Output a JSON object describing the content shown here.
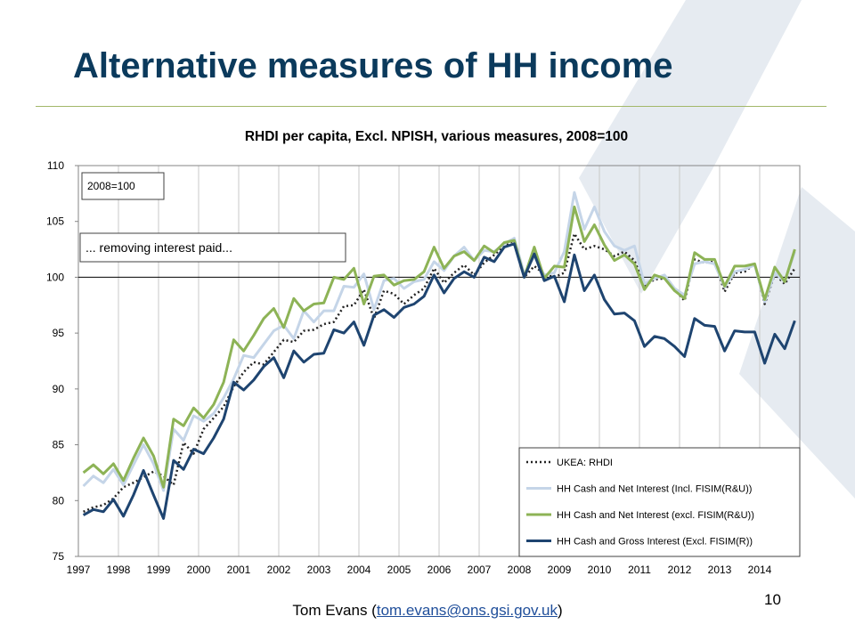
{
  "slide": {
    "title": "Alternative measures of HH income",
    "footer_name": "Tom Evans (",
    "footer_email": "tom.evans@ons.gsi.gov.uk",
    "footer_close": ")",
    "page_number": "10"
  },
  "colors": {
    "title": "#0b3a5c",
    "rule": "#a3b86a",
    "watermark": "#e6ebf1"
  },
  "chart_data": {
    "type": "line",
    "title": "RHDI per capita, Excl. NPISH, various measures, 2008=100",
    "xlabel": "",
    "ylabel": "",
    "ylim": [
      75,
      110
    ],
    "yticks": [
      75,
      80,
      85,
      90,
      95,
      100,
      105,
      110
    ],
    "xticks": [
      "1997",
      "1998",
      "1999",
      "2000",
      "2001",
      "2002",
      "2003",
      "2004",
      "2005",
      "2006",
      "2007",
      "2008",
      "2009",
      "2010",
      "2011",
      "2012",
      "2013",
      "2014"
    ],
    "x_start": 1997,
    "periods_per_year": 4,
    "grid": "vertical",
    "reference_line": 100,
    "legend_position": "bottom-right",
    "annotations": [
      "2008=100",
      "... removing interest paid..."
    ],
    "series": [
      {
        "name": "UKEA: RHDI",
        "color": "#222222",
        "style": "dotted",
        "values": [
          79.0,
          79.4,
          79.6,
          80.2,
          81.2,
          81.6,
          82.1,
          82.6,
          82.2,
          81.4,
          85.2,
          84.2,
          86.4,
          87.4,
          88.4,
          90.2,
          91.5,
          92.4,
          92.2,
          93.3,
          94.4,
          94.2,
          95.2,
          95.3,
          95.8,
          96.0,
          97.4,
          97.5,
          98.9,
          96.3,
          98.8,
          98.5,
          97.6,
          98.4,
          99.0,
          100.8,
          99.5,
          100.4,
          101.1,
          100.2,
          101.3,
          102.0,
          102.8,
          103.3,
          100.0,
          101.0,
          100.3,
          100.0,
          100.4,
          103.9,
          102.5,
          102.8,
          102.5,
          101.9,
          102.3,
          101.5,
          99.2,
          99.8,
          99.9,
          98.9,
          97.9,
          101.6,
          101.3,
          101.4,
          98.7,
          100.4,
          100.5,
          101.2,
          97.6,
          100.3,
          99.4,
          100.8
        ]
      },
      {
        "name": "HH Cash and Net Interest (Incl. FISIM(R&U))",
        "color": "#c5d5e8",
        "style": "solid",
        "values": [
          81.3,
          82.2,
          81.6,
          82.8,
          81.4,
          83.2,
          85.0,
          83.3,
          80.9,
          86.4,
          85.4,
          87.6,
          87.1,
          87.8,
          89.2,
          90.9,
          93.0,
          92.8,
          94.0,
          95.2,
          95.7,
          94.5,
          97.0,
          96.0,
          97.0,
          97.0,
          99.2,
          99.1,
          100.3,
          97.1,
          99.7,
          99.9,
          99.0,
          99.6,
          99.8,
          101.4,
          100.6,
          101.9,
          102.7,
          101.5,
          102.4,
          102.3,
          103.0,
          103.5,
          100.3,
          101.9,
          100.2,
          100.4,
          102.3,
          107.6,
          104.3,
          106.3,
          104.1,
          102.8,
          102.4,
          102.8,
          99.4,
          99.9,
          100.2,
          99.0,
          98.4,
          101.2,
          101.4,
          101.2,
          99.1,
          100.5,
          100.7,
          101.1,
          97.8,
          100.4,
          99.6,
          102.3
        ]
      },
      {
        "name": "HH Cash and Net Interest (excl. FISIM(R&U))",
        "color": "#8db356",
        "style": "solid",
        "values": [
          82.5,
          83.2,
          82.4,
          83.3,
          81.8,
          83.8,
          85.6,
          84.0,
          81.2,
          87.3,
          86.7,
          88.3,
          87.4,
          88.6,
          90.6,
          94.4,
          93.4,
          94.8,
          96.3,
          97.2,
          95.5,
          98.1,
          97.0,
          97.6,
          97.7,
          100.0,
          99.8,
          100.8,
          97.6,
          100.1,
          100.2,
          99.3,
          99.7,
          99.8,
          100.5,
          102.7,
          100.8,
          101.9,
          102.3,
          101.5,
          102.8,
          102.2,
          103.1,
          103.3,
          100.0,
          102.7,
          99.9,
          101.0,
          100.9,
          106.3,
          103.2,
          104.7,
          102.9,
          101.5,
          102.0,
          101.2,
          98.9,
          100.2,
          99.9,
          98.8,
          98.1,
          102.2,
          101.6,
          101.6,
          99.2,
          101.0,
          101.0,
          101.2,
          98.0,
          100.9,
          99.6,
          102.5
        ]
      },
      {
        "name": "HH Cash and Gross Interest (Excl. FISIM(R))",
        "color": "#1e4470",
        "style": "solid",
        "values": [
          78.7,
          79.2,
          79.0,
          80.1,
          78.6,
          80.5,
          82.7,
          80.5,
          78.4,
          83.6,
          82.8,
          84.6,
          84.2,
          85.6,
          87.3,
          90.6,
          89.9,
          90.8,
          92.0,
          92.8,
          91.0,
          93.4,
          92.4,
          93.1,
          93.2,
          95.3,
          95.0,
          96.0,
          93.9,
          96.6,
          97.1,
          96.4,
          97.3,
          97.6,
          98.3,
          100.2,
          98.6,
          99.9,
          100.5,
          100.0,
          101.8,
          101.4,
          102.7,
          103.0,
          100.0,
          102.1,
          99.7,
          100.1,
          97.8,
          102.0,
          98.8,
          100.2,
          98.0,
          96.7,
          96.8,
          96.1,
          93.8,
          94.7,
          94.5,
          93.8,
          92.9,
          96.3,
          95.7,
          95.6,
          93.4,
          95.2,
          95.1,
          95.1,
          92.3,
          94.9,
          93.6,
          96.1
        ]
      }
    ]
  }
}
